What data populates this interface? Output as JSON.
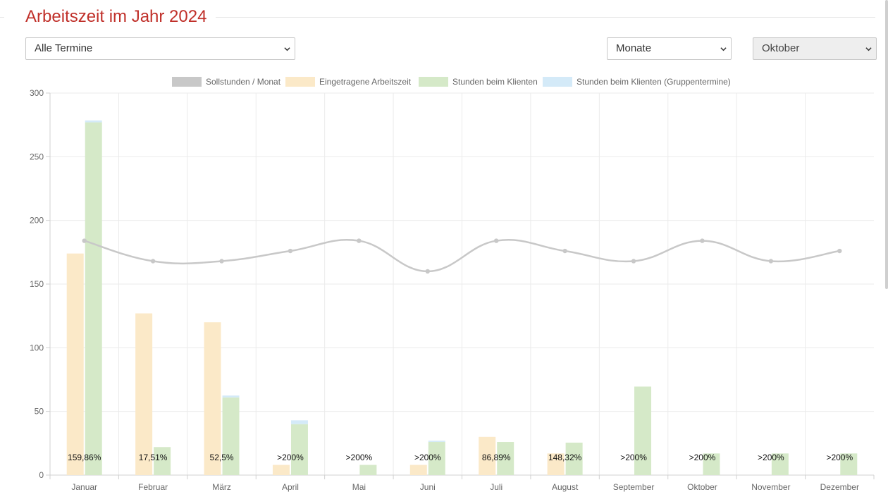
{
  "page": {
    "title": "Arbeitszeit im Jahr 2024"
  },
  "filters": {
    "termine": {
      "value": "Alle Termine"
    },
    "zeitraum": {
      "value": "Monate"
    },
    "monat": {
      "value": "Oktober",
      "disabled": true
    }
  },
  "colors": {
    "title": "#c0302a",
    "soll": "#c8c8c8",
    "eingetragen": "#fbe9c8",
    "klienten": "#d5e9c8",
    "gruppen": "#d4eaf8"
  },
  "chart_data": {
    "type": "bar",
    "categories": [
      "Januar",
      "Februar",
      "März",
      "April",
      "Mai",
      "Juni",
      "Juli",
      "August",
      "September",
      "Oktober",
      "November",
      "Dezember"
    ],
    "ylim": [
      0,
      300
    ],
    "yticks": [
      0,
      50,
      100,
      150,
      200,
      250,
      300
    ],
    "grid": true,
    "legend_position": "top",
    "series": [
      {
        "name": "Sollstunden / Monat",
        "type": "line",
        "color": "#c8c8c8",
        "values": [
          184,
          168,
          168,
          176,
          184,
          160,
          184,
          176,
          168,
          184,
          168,
          176
        ]
      },
      {
        "name": "Eingetragene Arbeitszeit",
        "type": "bar",
        "color": "#fbe9c8",
        "values": [
          174,
          127,
          120,
          8,
          0,
          8,
          30,
          17,
          0,
          0,
          0,
          0
        ]
      },
      {
        "name": "Stunden beim Klienten",
        "type": "bar",
        "color": "#d5e9c8",
        "stack": "klient",
        "values": [
          277,
          22,
          61,
          40,
          8,
          26,
          26,
          25.5,
          69.5,
          17,
          17,
          17
        ]
      },
      {
        "name": "Stunden beim Klienten (Gruppentermine)",
        "type": "bar",
        "color": "#d4eaf8",
        "stack": "klient",
        "values": [
          1.5,
          0,
          1.5,
          3,
          0,
          1,
          0,
          0,
          0,
          0,
          0,
          0
        ]
      }
    ],
    "bar_labels": [
      "159,86%",
      "17,51%",
      "52,5%",
      ">200%",
      ">200%",
      ">200%",
      "86,89%",
      "148,32%",
      ">200%",
      ">200%",
      ">200%",
      ">200%"
    ]
  }
}
